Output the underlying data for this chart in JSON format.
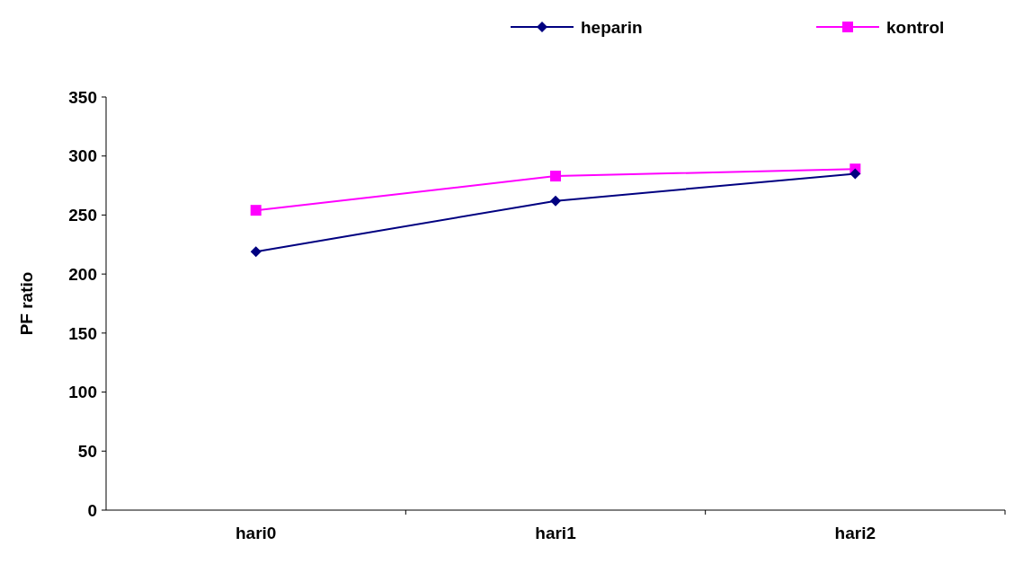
{
  "chart_data": {
    "type": "line",
    "ylabel": "PF ratio",
    "categories": [
      "hari0",
      "hari1",
      "hari2"
    ],
    "series": [
      {
        "name": "heparin",
        "color": "#000080",
        "values": [
          219,
          262,
          285
        ],
        "marker": "diamond"
      },
      {
        "name": "kontrol",
        "color": "#ff00ff",
        "values": [
          254,
          283,
          289
        ],
        "marker": "square"
      }
    ],
    "ylim": [
      0,
      350
    ],
    "yticks": [
      0,
      50,
      100,
      150,
      200,
      250,
      300,
      350
    ],
    "grid": false,
    "legend": "top",
    "line_style": "solid"
  }
}
